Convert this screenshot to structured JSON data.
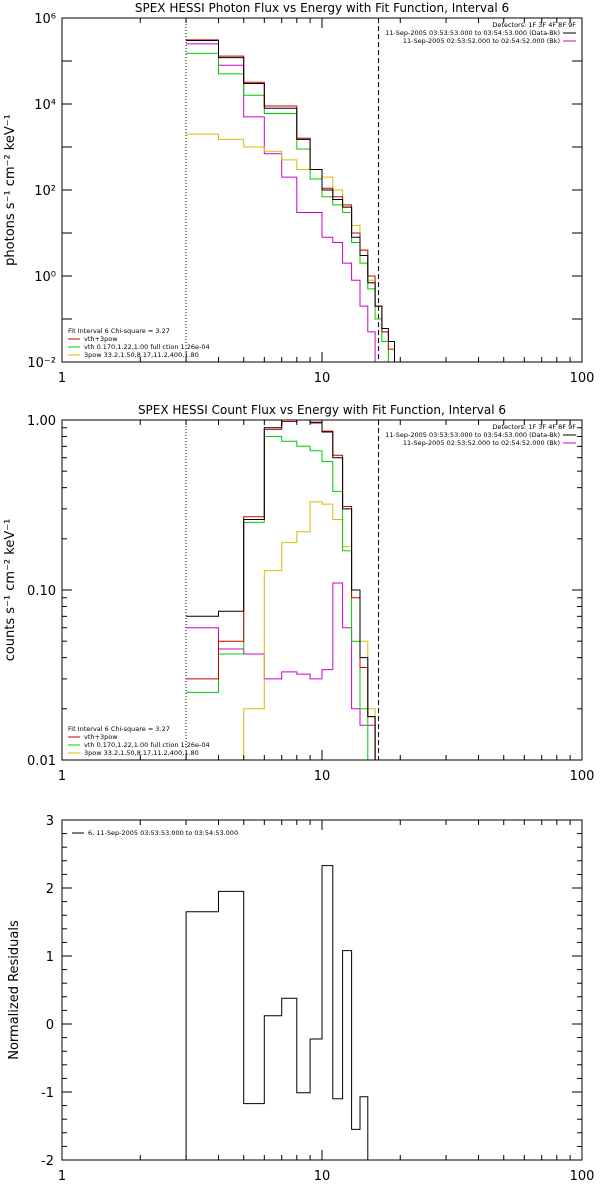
{
  "panels": [
    {
      "key": "photon",
      "title": "SPEX HESSI Photon Flux vs Energy with Fit Function, Interval 6",
      "ylabel": "photons s⁻¹ cm⁻² keV⁻¹",
      "xticks": [
        "1",
        "10",
        "100"
      ],
      "yticks": [
        "10⁻²",
        "10⁰",
        "10²",
        "10⁴",
        "10⁶"
      ],
      "detectors": "Detectors: 1F 3F 4F 8F 9F",
      "data_lines": [
        {
          "text": "11-Sep-2005 03:53:53.000 to 03:54:53.000 (Data-Bk)",
          "color": "#000000"
        },
        {
          "text": "11-Sep-2005 02:53:52.000 to 02:54:52.000 (Bk)",
          "color": "#cc00cc"
        }
      ],
      "fit_legend": [
        {
          "text": "Fit Interval 6   Chi-square = 3.27",
          "color": ""
        },
        {
          "text": "vth+3pow",
          "color": "#cc0000"
        },
        {
          "text": "vth 0.170,1.22,1.00  full ction 1.26e-04",
          "color": "#00cc00"
        },
        {
          "text": "3pow 33.2,1.50,8.17,11.2,400,1.80",
          "color": "#ddbb00"
        }
      ]
    },
    {
      "key": "count",
      "title": "SPEX HESSI Count Flux vs Energy with Fit Function, Interval 6",
      "ylabel": "counts s⁻¹ cm⁻² keV⁻¹",
      "xticks": [
        "1",
        "10",
        "100"
      ],
      "yticks": [
        "0.01",
        "0.10",
        "1.00"
      ],
      "detectors": "Detectors: 1F 3F 4F 8F 9F",
      "data_lines": [
        {
          "text": "11-Sep-2005 03:53:53.000 to 03:54:53.000 (Data-Bk)",
          "color": "#000000"
        },
        {
          "text": "11-Sep-2005 02:53:52.000 to 02:54:52.000 (Bk)",
          "color": "#cc00cc"
        }
      ],
      "fit_legend": [
        {
          "text": "Fit Interval 6   Chi-square = 3.27",
          "color": ""
        },
        {
          "text": "vth+3pow",
          "color": "#cc0000"
        },
        {
          "text": "vth 0.170,1.22,1.00  full ction 1.26e-04",
          "color": "#00cc00"
        },
        {
          "text": "3pow 33.2,1.50,8.17,11.2,400,1.80",
          "color": "#ddbb00"
        }
      ]
    },
    {
      "key": "resid",
      "title": "",
      "ylabel": "Normalized Residuals",
      "xticks": [
        "1",
        "10",
        "100"
      ],
      "yticks": [
        "-2",
        "-1",
        "0",
        "1",
        "2",
        "3"
      ],
      "legend": "6, 11-Sep-2005 03:53:53.000 to 03:54:53.000"
    }
  ],
  "chart_data": [
    {
      "type": "line",
      "title": "SPEX HESSI Photon Flux vs Energy with Fit Function, Interval 6",
      "xlabel": "",
      "ylabel": "photons s⁻¹ cm⁻² keV⁻¹",
      "xscale": "log",
      "yscale": "log",
      "xlim": [
        1,
        100
      ],
      "ylim": [
        0.01,
        1000000
      ],
      "fit_range_keV": [
        3,
        16.5
      ],
      "x_edges": [
        3,
        4,
        5,
        6,
        7,
        8,
        9,
        10,
        11,
        12,
        13,
        14,
        15,
        16,
        17,
        18,
        19,
        20
      ],
      "series": [
        {
          "name": "Data-Bk",
          "color": "#000000",
          "values": [
            300000,
            120000,
            30000,
            8000,
            8000,
            1500,
            300,
            100,
            60,
            40,
            8,
            3,
            0.7,
            0.2,
            0.06,
            0.03,
            0.01
          ]
        },
        {
          "name": "vth+3pow",
          "color": "#cc0000",
          "values": [
            310000,
            130000,
            32000,
            9000,
            9000,
            1600,
            300,
            110,
            70,
            45,
            10,
            4,
            1,
            0.2,
            0.05,
            0.02,
            0.01
          ]
        },
        {
          "name": "vth",
          "color": "#00cc00",
          "values": [
            150000,
            50000,
            16000,
            6000,
            6000,
            900,
            180,
            70,
            45,
            30,
            6,
            2,
            0.5,
            0.1,
            0.03,
            0.01,
            0.01
          ]
        },
        {
          "name": "3pow",
          "color": "#ddbb00",
          "values": [
            2000,
            1500,
            1000,
            800,
            500,
            300,
            300,
            200,
            100,
            40,
            15,
            4,
            0.8,
            0.2,
            0.05,
            0.01,
            0.01
          ]
        },
        {
          "name": "Bk",
          "color": "#cc00cc",
          "values": [
            250000,
            80000,
            5000,
            700,
            200,
            30,
            30,
            8,
            6,
            2,
            0.8,
            0.2,
            0.05,
            0.01,
            0.01,
            0.01,
            0.01
          ]
        }
      ]
    },
    {
      "type": "line",
      "title": "SPEX HESSI Count Flux vs Energy with Fit Function, Interval 6",
      "xlabel": "",
      "ylabel": "counts s⁻¹ cm⁻² keV⁻¹",
      "xscale": "log",
      "yscale": "log",
      "xlim": [
        1,
        100
      ],
      "ylim": [
        0.01,
        1.0
      ],
      "fit_range_keV": [
        3,
        16.5
      ],
      "x_edges": [
        3,
        4,
        5,
        6,
        7,
        8,
        9,
        10,
        11,
        12,
        13,
        14,
        15,
        16,
        17,
        18,
        19
      ],
      "series": [
        {
          "name": "Data-Bk",
          "color": "#000000",
          "values": [
            0.07,
            0.075,
            0.26,
            0.9,
            1.0,
            1.0,
            0.97,
            0.85,
            0.6,
            0.3,
            0.1,
            0.04,
            0.018,
            0.01,
            0.01,
            0.01
          ]
        },
        {
          "name": "vth+3pow",
          "color": "#cc0000",
          "values": [
            0.03,
            0.05,
            0.27,
            0.88,
            0.98,
            1.0,
            0.96,
            0.86,
            0.62,
            0.31,
            0.09,
            0.035,
            0.018,
            0.01,
            0.01,
            0.01
          ]
        },
        {
          "name": "vth",
          "color": "#00cc00",
          "values": [
            0.025,
            0.042,
            0.25,
            0.8,
            0.75,
            0.7,
            0.66,
            0.57,
            0.38,
            0.17,
            0.05,
            0.02,
            0.01,
            0.01,
            0.01,
            0.01
          ]
        },
        {
          "name": "3pow",
          "color": "#ddbb00",
          "values": [
            0.01,
            0.01,
            0.02,
            0.13,
            0.19,
            0.22,
            0.33,
            0.32,
            0.26,
            0.18,
            0.1,
            0.05,
            0.02,
            0.01,
            0.01,
            0.01
          ]
        },
        {
          "name": "Bk",
          "color": "#cc00cc",
          "values": [
            0.06,
            0.045,
            0.042,
            0.03,
            0.033,
            0.032,
            0.03,
            0.034,
            0.11,
            0.06,
            0.02,
            0.016,
            0.016,
            0.01,
            0.01,
            0.01
          ]
        }
      ]
    },
    {
      "type": "line",
      "title": "",
      "xlabel": "",
      "ylabel": "Normalized Residuals",
      "xscale": "log",
      "yscale": "linear",
      "xlim": [
        1,
        100
      ],
      "ylim": [
        -2,
        3
      ],
      "x_edges": [
        3,
        4,
        5,
        6,
        7,
        8,
        9,
        10,
        11,
        12,
        13,
        14,
        15,
        16.5
      ],
      "series": [
        {
          "name": "6, 11-Sep-2005 03:53:53.000 to 03:54:53.000",
          "color": "#000000",
          "values": [
            1.65,
            1.95,
            -1.17,
            0.12,
            0.38,
            -1.01,
            -0.22,
            2.33,
            -1.1,
            1.08,
            -1.55,
            -1.07,
            -2.0
          ]
        }
      ]
    }
  ]
}
